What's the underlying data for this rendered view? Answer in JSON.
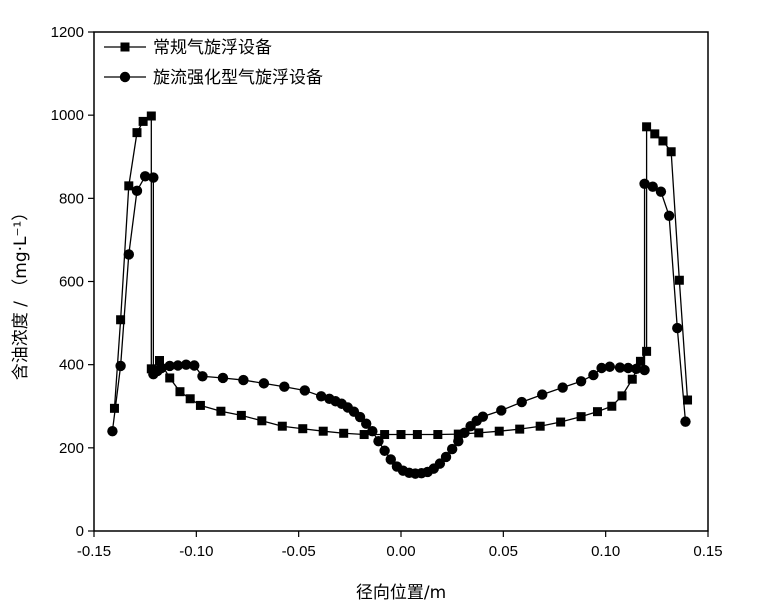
{
  "chart_data": {
    "type": "line",
    "title": "",
    "xlabel": "径向位置/m",
    "ylabel": "含油浓度 / （mg·L⁻¹）",
    "xlim": [
      -0.15,
      0.15
    ],
    "ylim": [
      0,
      1200
    ],
    "xticks": [
      -0.15,
      -0.1,
      -0.05,
      0.0,
      0.05,
      0.1,
      0.15
    ],
    "xtick_labels": [
      "-0.15",
      "-0.10",
      "-0.05",
      "0.00",
      "0.05",
      "0.10",
      "0.15"
    ],
    "yticks": [
      0,
      200,
      400,
      600,
      800,
      1000,
      1200
    ],
    "ytick_labels": [
      "0",
      "200",
      "400",
      "600",
      "800",
      "1000",
      "1200"
    ],
    "grid": false,
    "legend_position": "top-left",
    "series": [
      {
        "name": "常规气旋浮设备",
        "marker": "square",
        "color": "#000000",
        "points": [
          [
            -0.14,
            295
          ],
          [
            -0.137,
            508
          ],
          [
            -0.133,
            830
          ],
          [
            -0.129,
            958
          ],
          [
            -0.126,
            985
          ],
          [
            -0.122,
            998
          ],
          [
            -0.122,
            390
          ],
          [
            -0.12,
            388
          ],
          [
            -0.118,
            410
          ],
          [
            -0.113,
            368
          ],
          [
            -0.108,
            335
          ],
          [
            -0.103,
            318
          ],
          [
            -0.098,
            302
          ],
          [
            -0.088,
            288
          ],
          [
            -0.078,
            278
          ],
          [
            -0.068,
            265
          ],
          [
            -0.058,
            252
          ],
          [
            -0.048,
            246
          ],
          [
            -0.038,
            240
          ],
          [
            -0.028,
            235
          ],
          [
            -0.018,
            232
          ],
          [
            -0.008,
            232
          ],
          [
            0.0,
            232
          ],
          [
            0.008,
            232
          ],
          [
            0.018,
            232
          ],
          [
            0.028,
            233
          ],
          [
            0.038,
            236
          ],
          [
            0.048,
            240
          ],
          [
            0.058,
            245
          ],
          [
            0.068,
            252
          ],
          [
            0.078,
            262
          ],
          [
            0.088,
            275
          ],
          [
            0.096,
            287
          ],
          [
            0.103,
            300
          ],
          [
            0.108,
            325
          ],
          [
            0.113,
            365
          ],
          [
            0.117,
            408
          ],
          [
            0.12,
            432
          ],
          [
            0.12,
            972
          ],
          [
            0.124,
            955
          ],
          [
            0.128,
            938
          ],
          [
            0.132,
            912
          ],
          [
            0.136,
            603
          ],
          [
            0.14,
            315
          ]
        ]
      },
      {
        "name": "旋流强化型气旋浮设备",
        "marker": "circle",
        "color": "#000000",
        "points": [
          [
            -0.141,
            240
          ],
          [
            -0.137,
            397
          ],
          [
            -0.133,
            665
          ],
          [
            -0.129,
            818
          ],
          [
            -0.125,
            853
          ],
          [
            -0.121,
            850
          ],
          [
            -0.121,
            377
          ],
          [
            -0.119,
            385
          ],
          [
            -0.117,
            392
          ],
          [
            -0.113,
            397
          ],
          [
            -0.109,
            398
          ],
          [
            -0.105,
            400
          ],
          [
            -0.101,
            398
          ],
          [
            -0.097,
            372
          ],
          [
            -0.087,
            368
          ],
          [
            -0.077,
            363
          ],
          [
            -0.067,
            355
          ],
          [
            -0.057,
            347
          ],
          [
            -0.047,
            338
          ],
          [
            -0.039,
            324
          ],
          [
            -0.035,
            318
          ],
          [
            -0.032,
            312
          ],
          [
            -0.029,
            306
          ],
          [
            -0.026,
            297
          ],
          [
            -0.023,
            287
          ],
          [
            -0.02,
            274
          ],
          [
            -0.017,
            258
          ],
          [
            -0.014,
            240
          ],
          [
            -0.011,
            216
          ],
          [
            -0.008,
            193
          ],
          [
            -0.005,
            172
          ],
          [
            -0.002,
            155
          ],
          [
            0.001,
            145
          ],
          [
            0.004,
            140
          ],
          [
            0.007,
            138
          ],
          [
            0.01,
            139
          ],
          [
            0.013,
            142
          ],
          [
            0.016,
            150
          ],
          [
            0.019,
            162
          ],
          [
            0.022,
            178
          ],
          [
            0.025,
            197
          ],
          [
            0.028,
            216
          ],
          [
            0.031,
            236
          ],
          [
            0.034,
            252
          ],
          [
            0.037,
            265
          ],
          [
            0.04,
            275
          ],
          [
            0.049,
            290
          ],
          [
            0.059,
            310
          ],
          [
            0.069,
            328
          ],
          [
            0.079,
            345
          ],
          [
            0.088,
            360
          ],
          [
            0.094,
            375
          ],
          [
            0.098,
            392
          ],
          [
            0.102,
            395
          ],
          [
            0.107,
            393
          ],
          [
            0.111,
            392
          ],
          [
            0.115,
            390
          ],
          [
            0.119,
            387
          ],
          [
            0.119,
            835
          ],
          [
            0.123,
            828
          ],
          [
            0.127,
            816
          ],
          [
            0.131,
            758
          ],
          [
            0.135,
            488
          ],
          [
            0.139,
            263
          ]
        ]
      }
    ]
  }
}
